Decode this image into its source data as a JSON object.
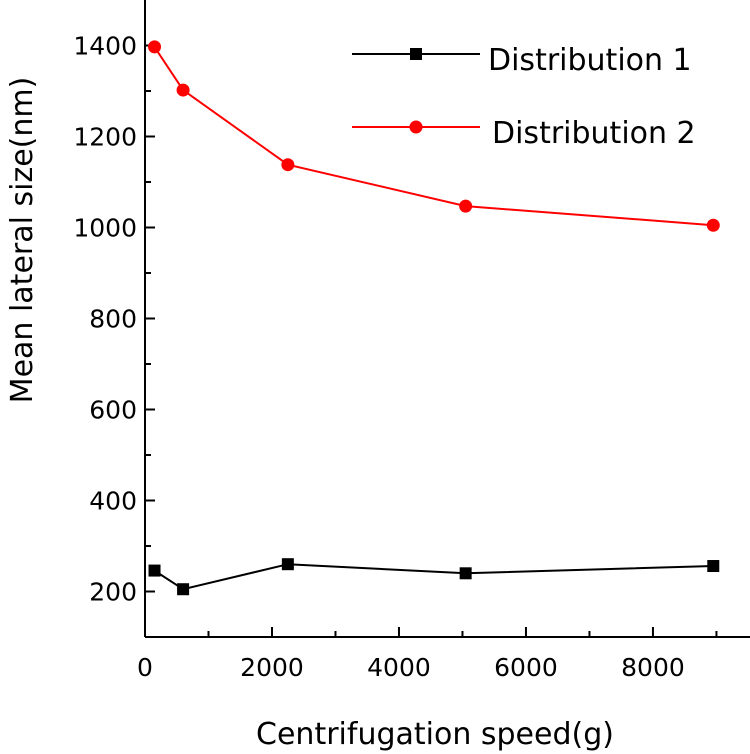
{
  "chart_data": {
    "type": "line",
    "xlabel": "Centrifugation speed(g)",
    "ylabel": "Mean lateral size(nm)",
    "xlim": [
      0,
      9300
    ],
    "ylim": [
      100,
      1500
    ],
    "xticks": [
      0,
      2000,
      4000,
      6000,
      8000
    ],
    "yticks": [
      200,
      400,
      600,
      800,
      1000,
      1200,
      1400
    ],
    "xtick_labels": [
      "0",
      "2000",
      "4000",
      "6000",
      "8000"
    ],
    "ytick_labels": [
      "200",
      "400",
      "600",
      "800",
      "1000",
      "1200",
      "1400"
    ],
    "grid": false,
    "legend_position": "top-right",
    "series": [
      {
        "name": "Distribution 1",
        "color": "#000000",
        "marker": "square",
        "x": [
          150,
          600,
          2250,
          5050,
          8950
        ],
        "y": [
          246,
          205,
          260,
          240,
          256
        ]
      },
      {
        "name": "Distribution 2",
        "color": "#ff0000",
        "marker": "circle",
        "x": [
          150,
          600,
          2250,
          5050,
          8950
        ],
        "y": [
          1397,
          1302,
          1138,
          1047,
          1005
        ]
      }
    ]
  }
}
